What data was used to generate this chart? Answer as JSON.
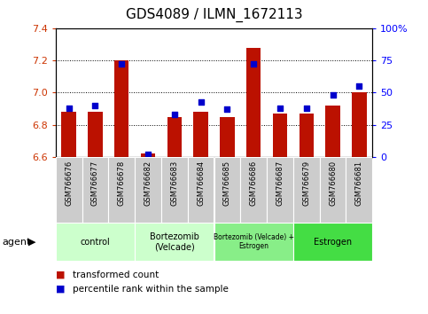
{
  "title": "GDS4089 / ILMN_1672113",
  "samples": [
    "GSM766676",
    "GSM766677",
    "GSM766678",
    "GSM766682",
    "GSM766683",
    "GSM766684",
    "GSM766685",
    "GSM766686",
    "GSM766687",
    "GSM766679",
    "GSM766680",
    "GSM766681"
  ],
  "red_values": [
    6.88,
    6.88,
    7.2,
    6.62,
    6.85,
    6.88,
    6.85,
    7.28,
    6.87,
    6.87,
    6.92,
    7.0
  ],
  "blue_values": [
    38,
    40,
    72,
    2,
    33,
    43,
    37,
    72,
    38,
    38,
    48,
    55
  ],
  "ymin": 6.6,
  "ymax": 7.4,
  "yticks": [
    6.6,
    6.8,
    7.0,
    7.2,
    7.4
  ],
  "right_yticks": [
    0,
    25,
    50,
    75,
    100
  ],
  "right_ytick_labels": [
    "0",
    "25",
    "50",
    "75",
    "100%"
  ],
  "bar_color": "#bb1100",
  "dot_color": "#0000cc",
  "bar_width": 0.55,
  "legend_red": "transformed count",
  "legend_blue": "percentile rank within the sample",
  "plot_bg_color": "#ffffff",
  "title_fontsize": 11,
  "tick_fontsize": 8,
  "group_colors": [
    "#ccffcc",
    "#ccffcc",
    "#88ee88",
    "#44dd44"
  ],
  "group_labels": [
    "control",
    "Bortezomib\n(Velcade)",
    "Bortezomib (Velcade) +\nEstrogen",
    "Estrogen"
  ],
  "group_ranges": [
    [
      0,
      3
    ],
    [
      3,
      6
    ],
    [
      6,
      9
    ],
    [
      9,
      12
    ]
  ]
}
